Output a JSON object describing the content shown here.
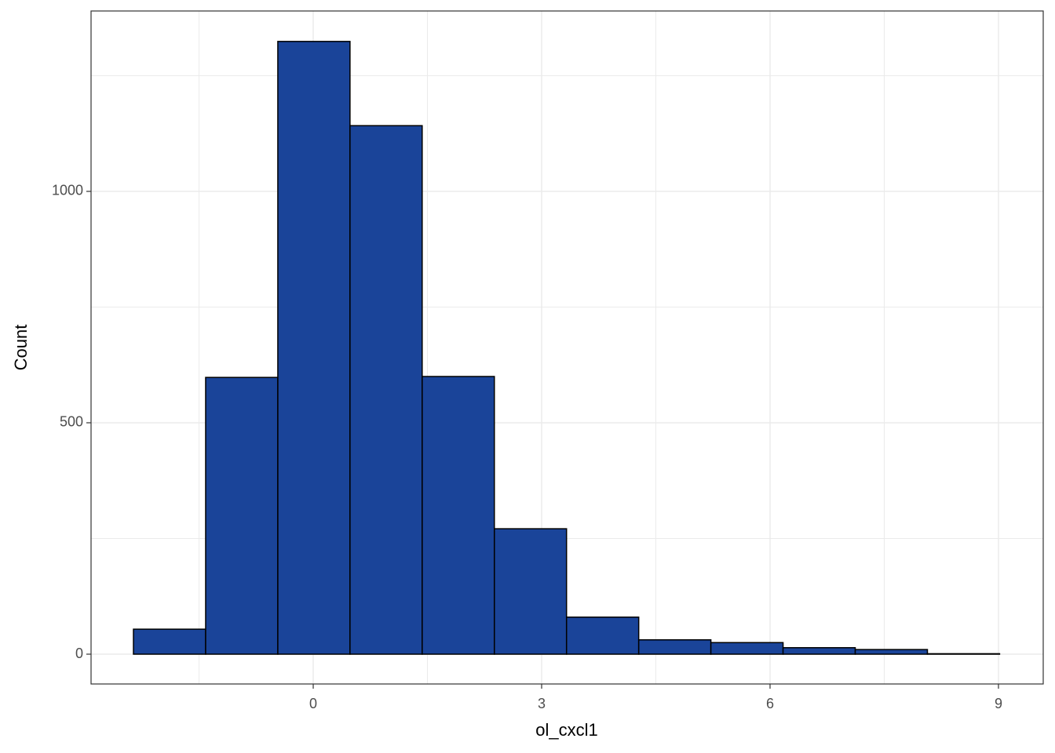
{
  "chart_data": {
    "type": "histogram",
    "x_label": "ol_cxcl1",
    "y_label": "Count",
    "bins": [
      -2.361,
      -1.413,
      -0.465,
      0.483,
      1.431,
      2.379,
      3.327,
      4.275,
      5.223,
      6.171,
      7.119,
      8.067,
      9.015
    ],
    "counts": [
      54,
      598,
      1324,
      1142,
      600,
      271,
      80,
      31,
      25,
      14,
      10,
      1
    ],
    "color": "#1a4499",
    "edge_color": "#000000",
    "xlim": [
      -2.918,
      9.588
    ],
    "ylim": [
      -64.4,
      1389.8
    ],
    "xticks": [
      0,
      3,
      6,
      9
    ],
    "yticks": [
      0,
      500,
      1000
    ],
    "x_minor_ticks": [
      -1.5,
      1.5,
      4.5,
      7.5
    ],
    "y_minor_ticks": [
      250,
      750,
      1250
    ],
    "grid": true
  }
}
